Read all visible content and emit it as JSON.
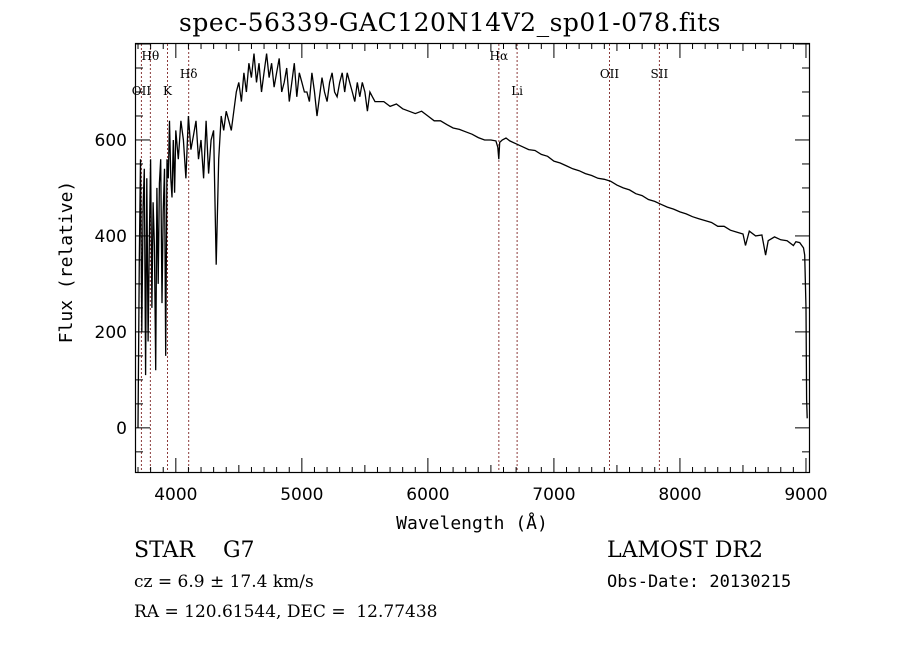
{
  "title": "spec-56339-GAC120N14V2_sp01-078.fits",
  "info": {
    "object_class": "STAR    G7",
    "cz": "cz = 6.9 ± 17.4 km/s",
    "radec": "RA = 120.61544, DEC =  12.77438",
    "survey": "LAMOST DR2",
    "obs_date": "Obs-Date: 20130215"
  },
  "colors": {
    "spectrum": "#000000",
    "line_marker": "#8b3a3a",
    "frame": "#000000"
  },
  "chart_data": {
    "type": "line",
    "title": "spec-56339-GAC120N14V2_sp01-078.fits",
    "xlabel": "Wavelength (Å)",
    "ylabel": "Flux (relative)",
    "xlim": [
      3684,
      9024
    ],
    "ylim": [
      -92,
      800
    ],
    "xticks": [
      4000,
      5000,
      6000,
      7000,
      8000,
      9000
    ],
    "xtick_labels": [
      "4000",
      "5000",
      "6000",
      "7000",
      "8000",
      "9000"
    ],
    "yticks": [
      0,
      200,
      400,
      600
    ],
    "ytick_labels": [
      "0",
      "200",
      "400",
      "600"
    ],
    "grid": false,
    "legend": "none",
    "spectral_lines": [
      {
        "label": "Hθ",
        "wavelength": 3798,
        "row": 0
      },
      {
        "label": "OII",
        "wavelength": 3727,
        "row": 2
      },
      {
        "label": "K",
        "wavelength": 3934,
        "row": 2
      },
      {
        "label": "Hδ",
        "wavelength": 4102,
        "row": 1
      },
      {
        "label": "Hα",
        "wavelength": 6563,
        "row": 0
      },
      {
        "label": "Li",
        "wavelength": 6708,
        "row": 2
      },
      {
        "label": "OII",
        "wavelength": 7441,
        "row": 1
      },
      {
        "label": "SII",
        "wavelength": 7837,
        "row": 1
      }
    ],
    "series": [
      {
        "name": "flux",
        "x": [
          3700,
          3710,
          3720,
          3730,
          3740,
          3750,
          3760,
          3770,
          3780,
          3790,
          3800,
          3810,
          3820,
          3830,
          3840,
          3850,
          3860,
          3870,
          3880,
          3890,
          3900,
          3910,
          3920,
          3930,
          3940,
          3950,
          3960,
          3970,
          3980,
          3990,
          4000,
          4020,
          4040,
          4060,
          4080,
          4100,
          4120,
          4140,
          4160,
          4180,
          4200,
          4220,
          4240,
          4260,
          4280,
          4300,
          4320,
          4340,
          4360,
          4380,
          4400,
          4420,
          4440,
          4460,
          4480,
          4500,
          4520,
          4540,
          4560,
          4580,
          4600,
          4620,
          4640,
          4660,
          4680,
          4700,
          4720,
          4740,
          4760,
          4780,
          4800,
          4820,
          4840,
          4860,
          4880,
          4900,
          4920,
          4940,
          4960,
          4980,
          5000,
          5020,
          5040,
          5060,
          5080,
          5100,
          5120,
          5140,
          5160,
          5180,
          5200,
          5220,
          5240,
          5260,
          5280,
          5300,
          5320,
          5340,
          5360,
          5380,
          5400,
          5420,
          5440,
          5460,
          5480,
          5500,
          5520,
          5540,
          5560,
          5580,
          5600,
          5650,
          5700,
          5750,
          5800,
          5850,
          5900,
          5950,
          6000,
          6050,
          6100,
          6150,
          6200,
          6250,
          6300,
          6350,
          6400,
          6450,
          6500,
          6540,
          6555,
          6563,
          6570,
          6590,
          6620,
          6650,
          6700,
          6750,
          6800,
          6850,
          6900,
          6950,
          7000,
          7050,
          7100,
          7150,
          7200,
          7250,
          7300,
          7350,
          7400,
          7450,
          7500,
          7550,
          7600,
          7650,
          7700,
          7750,
          7800,
          7850,
          7900,
          7950,
          8000,
          8050,
          8100,
          8150,
          8200,
          8250,
          8300,
          8350,
          8400,
          8450,
          8500,
          8520,
          8550,
          8600,
          8650,
          8680,
          8700,
          8750,
          8800,
          8850,
          8900,
          8920,
          8950,
          8980,
          8990,
          9000,
          9005,
          9010
        ],
        "y": [
          0,
          350,
          560,
          200,
          460,
          540,
          110,
          520,
          180,
          400,
          560,
          250,
          470,
          380,
          120,
          500,
          300,
          510,
          560,
          260,
          450,
          540,
          150,
          560,
          520,
          640,
          520,
          480,
          600,
          490,
          620,
          560,
          640,
          600,
          520,
          650,
          580,
          610,
          640,
          560,
          600,
          520,
          640,
          530,
          600,
          620,
          340,
          560,
          650,
          620,
          660,
          640,
          620,
          660,
          700,
          720,
          680,
          740,
          700,
          760,
          730,
          780,
          720,
          760,
          700,
          740,
          780,
          730,
          760,
          710,
          740,
          770,
          700,
          720,
          750,
          680,
          720,
          760,
          690,
          740,
          720,
          700,
          700,
          680,
          740,
          700,
          650,
          690,
          730,
          700,
          680,
          720,
          740,
          700,
          690,
          720,
          740,
          700,
          740,
          720,
          700,
          680,
          720,
          690,
          720,
          700,
          660,
          700,
          690,
          680,
          680,
          680,
          670,
          675,
          665,
          660,
          655,
          660,
          650,
          640,
          640,
          632,
          625,
          622,
          617,
          612,
          605,
          600,
          600,
          598,
          585,
          560,
          595,
          600,
          604,
          598,
          592,
          586,
          580,
          578,
          570,
          566,
          556,
          552,
          546,
          540,
          536,
          530,
          526,
          520,
          518,
          514,
          506,
          500,
          496,
          488,
          484,
          476,
          472,
          466,
          460,
          456,
          450,
          446,
          440,
          436,
          432,
          428,
          420,
          420,
          412,
          408,
          404,
          380,
          410,
          400,
          402,
          360,
          390,
          398,
          392,
          390,
          380,
          388,
          386,
          375,
          360,
          250,
          60,
          20
        ]
      }
    ]
  }
}
